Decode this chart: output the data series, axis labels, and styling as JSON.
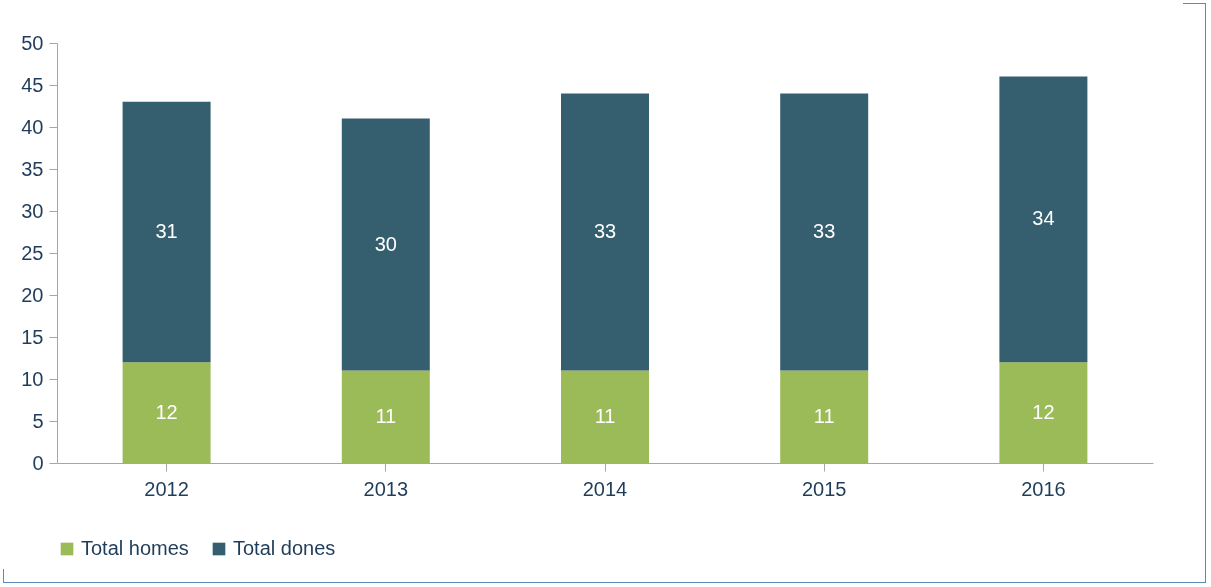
{
  "chart_data": {
    "type": "bar",
    "stacked": true,
    "categories": [
      "2012",
      "2013",
      "2014",
      "2015",
      "2016"
    ],
    "series": [
      {
        "name": "Total homes",
        "color": "#9bbb59",
        "values": [
          12,
          11,
          11,
          11,
          12
        ]
      },
      {
        "name": "Total dones",
        "color": "#355f6e",
        "values": [
          31,
          30,
          33,
          33,
          34
        ]
      }
    ],
    "ylim": [
      0,
      50
    ],
    "yticks": [
      0,
      5,
      10,
      15,
      20,
      25,
      30,
      35,
      40,
      45,
      50
    ],
    "grid": false,
    "legend": "bottom",
    "data_labels": true
  }
}
